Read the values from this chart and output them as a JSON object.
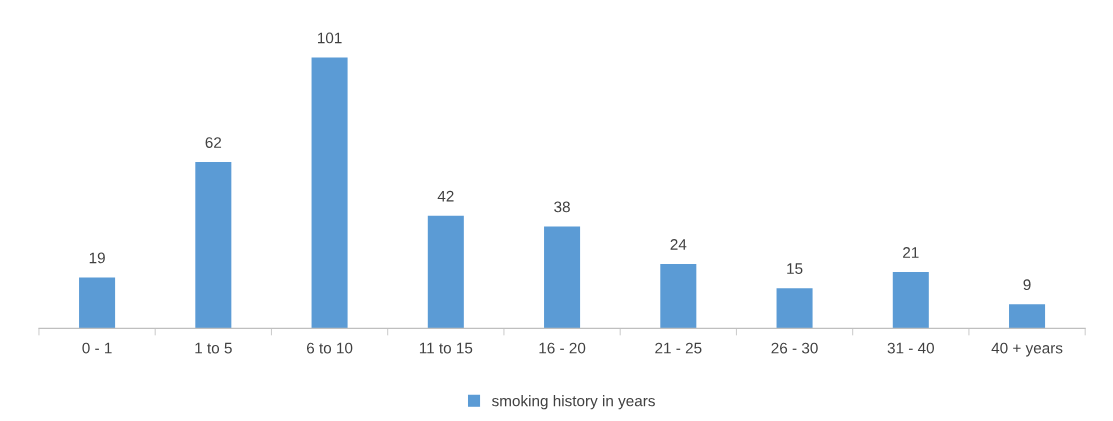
{
  "chart_data": {
    "type": "bar",
    "categories": [
      "0 - 1",
      "1 to 5",
      "6 to 10",
      "11 to 15",
      "16 - 20",
      "21 - 25",
      "26 - 30",
      "31 - 40",
      "40 + years"
    ],
    "series": [
      {
        "name": "smoking history in years",
        "color": "#5b9bd5",
        "values": [
          19,
          62,
          101,
          42,
          38,
          24,
          15,
          21,
          9
        ]
      }
    ],
    "data_labels": true,
    "legend": "bottom",
    "grid": false,
    "tick_labels": "x"
  }
}
